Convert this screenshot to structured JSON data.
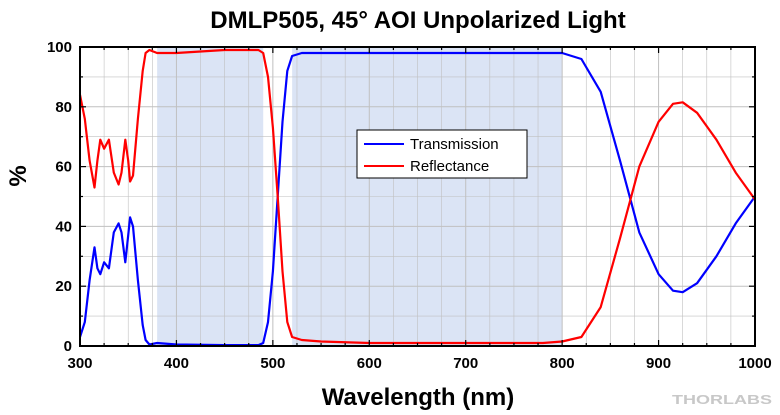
{
  "chart_data": {
    "type": "line",
    "title": "DMLP505, 45° AOI Unpolarized Light",
    "xlabel": "Wavelength (nm)",
    "ylabel": "%",
    "xlim": [
      300,
      1000
    ],
    "ylim": [
      0,
      100
    ],
    "x_ticks": [
      "300",
      "400",
      "500",
      "600",
      "700",
      "800",
      "900",
      "1000"
    ],
    "y_ticks": [
      "0",
      "20",
      "40",
      "60",
      "80",
      "100"
    ],
    "grid": true,
    "legend_position": "center",
    "shaded_regions": [
      {
        "from": 380,
        "to": 490,
        "color": "#dbe4f5"
      },
      {
        "from": 520,
        "to": 800,
        "color": "#dbe4f5"
      }
    ],
    "series": [
      {
        "name": "Transmission",
        "color": "#0000ff",
        "points": [
          [
            300,
            3
          ],
          [
            305,
            8
          ],
          [
            310,
            22
          ],
          [
            315,
            33
          ],
          [
            318,
            26
          ],
          [
            321,
            24
          ],
          [
            325,
            28
          ],
          [
            330,
            26
          ],
          [
            335,
            38
          ],
          [
            340,
            41
          ],
          [
            343,
            38
          ],
          [
            347,
            28
          ],
          [
            350,
            37
          ],
          [
            352,
            43
          ],
          [
            355,
            40
          ],
          [
            360,
            22
          ],
          [
            365,
            7
          ],
          [
            368,
            2
          ],
          [
            372,
            0.5
          ],
          [
            380,
            1
          ],
          [
            400,
            0.5
          ],
          [
            450,
            0.3
          ],
          [
            485,
            0.3
          ],
          [
            490,
            1
          ],
          [
            495,
            8
          ],
          [
            500,
            25
          ],
          [
            505,
            50
          ],
          [
            510,
            75
          ],
          [
            515,
            92
          ],
          [
            520,
            97
          ],
          [
            530,
            98
          ],
          [
            550,
            98
          ],
          [
            600,
            98
          ],
          [
            700,
            98
          ],
          [
            780,
            98
          ],
          [
            800,
            98
          ],
          [
            820,
            96
          ],
          [
            840,
            85
          ],
          [
            860,
            62
          ],
          [
            880,
            38
          ],
          [
            900,
            24
          ],
          [
            915,
            18.5
          ],
          [
            925,
            18
          ],
          [
            940,
            21
          ],
          [
            960,
            30
          ],
          [
            980,
            41
          ],
          [
            1000,
            50
          ]
        ]
      },
      {
        "name": "Reflectance",
        "color": "#ff0000",
        "points": [
          [
            300,
            84
          ],
          [
            305,
            76
          ],
          [
            310,
            62
          ],
          [
            315,
            53
          ],
          [
            318,
            62
          ],
          [
            321,
            69
          ],
          [
            325,
            66
          ],
          [
            330,
            69
          ],
          [
            335,
            58
          ],
          [
            340,
            54
          ],
          [
            343,
            58
          ],
          [
            347,
            69
          ],
          [
            350,
            62
          ],
          [
            352,
            55
          ],
          [
            355,
            57
          ],
          [
            360,
            76
          ],
          [
            365,
            92
          ],
          [
            368,
            98
          ],
          [
            372,
            99
          ],
          [
            380,
            98
          ],
          [
            400,
            98
          ],
          [
            450,
            99
          ],
          [
            485,
            99
          ],
          [
            490,
            98
          ],
          [
            495,
            90
          ],
          [
            500,
            73
          ],
          [
            505,
            50
          ],
          [
            510,
            25
          ],
          [
            515,
            8
          ],
          [
            520,
            3
          ],
          [
            530,
            2
          ],
          [
            550,
            1.5
          ],
          [
            600,
            1
          ],
          [
            700,
            1
          ],
          [
            780,
            1
          ],
          [
            800,
            1.5
          ],
          [
            820,
            3
          ],
          [
            840,
            13
          ],
          [
            860,
            36
          ],
          [
            880,
            60
          ],
          [
            900,
            75
          ],
          [
            915,
            81
          ],
          [
            925,
            81.5
          ],
          [
            940,
            78
          ],
          [
            960,
            69
          ],
          [
            980,
            58
          ],
          [
            1000,
            49
          ]
        ]
      }
    ]
  },
  "watermark": "THORLABS"
}
